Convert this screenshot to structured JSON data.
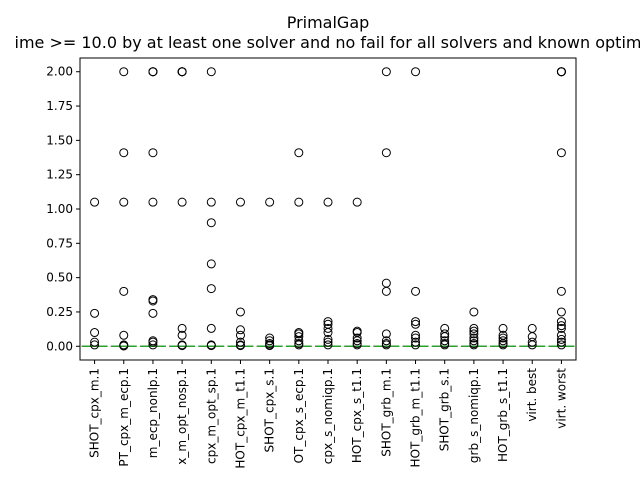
{
  "chart_data": {
    "type": "boxplot",
    "title": "PrimalGap",
    "subtitle": "ime >= 10.0 by at least one solver and no fail for all solvers and known optim",
    "xlabel": "",
    "ylabel": "",
    "ylim": [
      -0.1,
      2.1
    ],
    "yticks": [
      "0.00",
      "0.25",
      "0.50",
      "0.75",
      "1.00",
      "1.25",
      "1.50",
      "1.75",
      "2.00"
    ],
    "grid": false,
    "median_color": "#2ca02c",
    "categories": [
      "SHOT_cpx_m.1",
      "PT_cpx_m_ecp.1",
      "m_ecp_nonlp.1",
      "x_m_opt_nosp.1",
      "cpx_m_opt_sp.1",
      "HOT_cpx_m_t1.1",
      "SHOT_cpx_s.1",
      "OT_cpx_s_ecp.1",
      "cpx_s_nomiqp.1",
      "HOT_cpx_s_t1.1",
      "SHOT_grb_m.1",
      "HOT_grb_m_t1.1",
      "SHOT_grb_s.1",
      "grb_s_nomiqp.1",
      "HOT_grb_s_t1.1",
      "virt. best",
      "virt. worst"
    ],
    "outliers": [
      [
        1.05,
        0.24,
        0.1,
        0.03,
        0.01
      ],
      [
        2.0,
        1.41,
        1.05,
        0.4,
        0.08,
        0.01,
        0.005,
        0.002
      ],
      [
        2.0,
        2.0,
        2.0,
        1.41,
        1.05,
        0.34,
        0.33,
        0.24,
        0.04,
        0.03,
        0.01
      ],
      [
        2.0,
        2.0,
        2.0,
        2.0,
        1.05,
        0.13,
        0.08,
        0.01,
        0.005
      ],
      [
        2.0,
        1.05,
        0.9,
        0.6,
        0.42,
        0.13,
        0.01,
        0.005
      ],
      [
        1.05,
        0.25,
        0.12,
        0.08,
        0.03,
        0.01,
        0.005
      ],
      [
        1.05,
        0.06,
        0.04,
        0.02,
        0.01,
        0.005
      ],
      [
        1.41,
        1.05,
        0.1,
        0.09,
        0.07,
        0.04,
        0.02,
        0.01
      ],
      [
        1.05,
        0.18,
        0.16,
        0.13,
        0.1,
        0.05,
        0.03,
        0.01
      ],
      [
        1.05,
        0.11,
        0.1,
        0.06,
        0.04,
        0.02,
        0.01
      ],
      [
        2.0,
        1.41,
        0.46,
        0.4,
        0.09,
        0.04,
        0.02,
        0.01
      ],
      [
        2.0,
        0.4,
        0.18,
        0.16,
        0.08,
        0.06,
        0.03,
        0.01
      ],
      [
        0.13,
        0.09,
        0.07,
        0.04,
        0.02,
        0.01
      ],
      [
        0.25,
        0.13,
        0.11,
        0.09,
        0.06,
        0.04,
        0.02,
        0.01
      ],
      [
        0.13,
        0.08,
        0.06,
        0.04,
        0.02,
        0.01
      ],
      [
        0.13,
        0.07,
        0.03,
        0.01
      ],
      [
        2.0,
        2.0,
        2.0,
        2.0,
        1.41,
        0.4,
        0.25,
        0.18,
        0.15,
        0.13,
        0.08,
        0.05,
        0.03,
        0.01
      ]
    ],
    "median": [
      0,
      0,
      0,
      0,
      0,
      0,
      0,
      0,
      0,
      0,
      0,
      0,
      0,
      0,
      0,
      0,
      0
    ]
  }
}
